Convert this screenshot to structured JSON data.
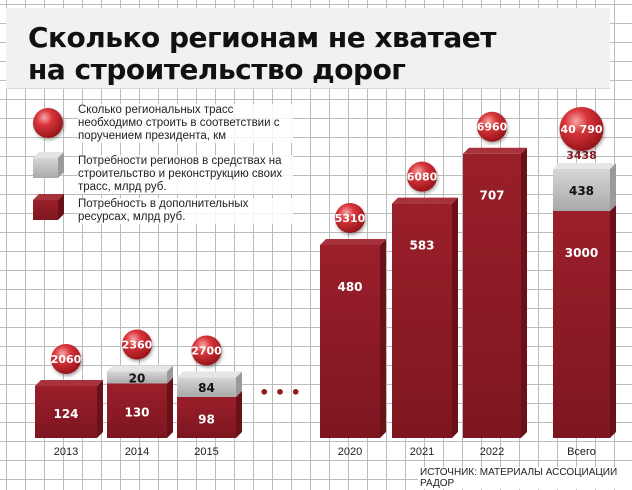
{
  "header": {
    "title_line1": "Сколько регионам не хватает",
    "title_line2": "на строительство дорог"
  },
  "legend": [
    {
      "text": "Сколько региональных трасс необходимо строить в соответствии с поручением президента, км",
      "marker": "circle",
      "color": "#c0252a"
    },
    {
      "text": "Потребности регионов в средствах на строительство и реконструкцию своих трасс, млрд руб.",
      "marker": "gray-box",
      "color": "#b9b9b9"
    },
    {
      "text": "Потребность в дополнительных ресурсах, млрд руб.",
      "marker": "red-box",
      "color": "#8b1a24"
    }
  ],
  "source": "ИСТОЧНИК: МАТЕРИАЛЫ АССОЦИАЦИИ РАДОР",
  "ellipsis": "• • •",
  "colors": {
    "bar": "#8b1a24",
    "bar_side": "#6a1019",
    "gray": "#b9b9b9",
    "gray_side": "#9a9a9a",
    "circle": "#c0252a"
  },
  "chart_data": {
    "type": "bar",
    "categories": [
      "2013",
      "2014",
      "2015",
      "2020",
      "2021",
      "2022",
      "Всего"
    ],
    "series": [
      {
        "name": "Потребность в дополнительных ресурсах, млрд руб.",
        "values": [
          124,
          130,
          98,
          480,
          583,
          707,
          3000
        ]
      },
      {
        "name": "Потребности регионов в средствах на строительство и реконструкцию своих трасс, млрд руб.",
        "values": [
          null,
          20,
          84,
          null,
          null,
          null,
          438
        ]
      },
      {
        "name": "Сколько региональных трасс необходимо строить в соответствии с поручением президента, км",
        "values": [
          2060,
          2360,
          2700,
          5310,
          6080,
          6960,
          40790
        ]
      }
    ],
    "labels": {
      "red": [
        "124",
        "130",
        "98",
        "480",
        "583",
        "707",
        "3000"
      ],
      "gray": [
        "",
        "20",
        "84",
        "",
        "",
        "",
        "438"
      ],
      "circle": [
        "2060",
        "2360",
        "2700",
        "5310",
        "6080",
        "6960",
        "40 790"
      ],
      "total_above": [
        "",
        "",
        "",
        "",
        "",
        "",
        "3438"
      ]
    },
    "break_after": "2015"
  }
}
